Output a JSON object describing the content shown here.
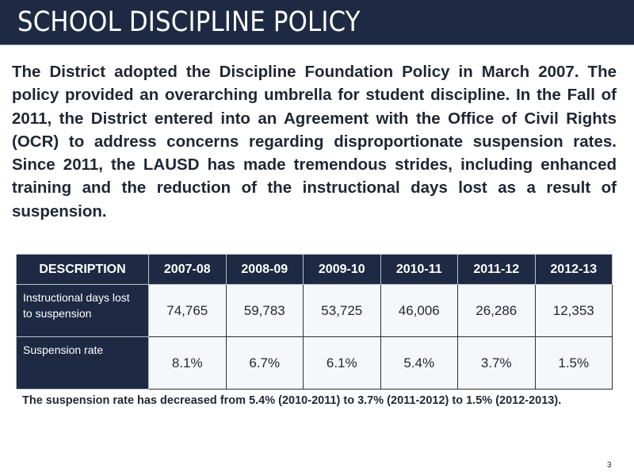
{
  "title": "SCHOOL DISCIPLINE POLICY",
  "paragraph": "The District adopted the Discipline Foundation Policy in March 2007.  The policy provided an overarching umbrella for student discipline.  In the Fall of 2011, the District entered into an Agreement with the Office of Civil Rights (OCR) to address concerns regarding disproportionate suspension rates.  Since 2011, the LAUSD has made tremendous strides, including enhanced training and the reduction of the instructional days lost as a result of suspension.",
  "table": {
    "headers": [
      "DESCRIPTION",
      "2007-08",
      "2008-09",
      "2009-10",
      "2010-11",
      "2011-12",
      "2012-13"
    ],
    "rows": [
      {
        "label": "Instructional days lost to suspension",
        "values": [
          "74,765",
          "59,783",
          "53,725",
          "46,006",
          "26,286",
          "12,353"
        ]
      },
      {
        "label": "Suspension rate",
        "values": [
          "8.1%",
          "6.7%",
          "6.1%",
          "5.4%",
          "3.7%",
          "1.5%"
        ]
      }
    ]
  },
  "note": "The suspension rate has decreased from 5.4% (2010-2011) to 3.7% (2011-2012) to 1.5% (2012-2013).",
  "page_number": "3",
  "colors": {
    "header_bg": "#1e2a43",
    "text": "#1f2633"
  }
}
